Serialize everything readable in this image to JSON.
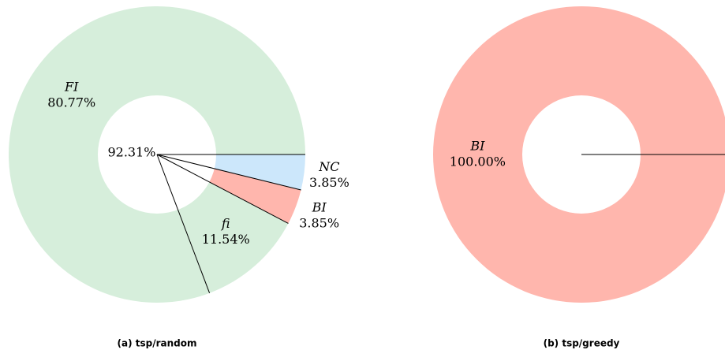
{
  "chart_data": [
    {
      "type": "donut",
      "title": "(a) tsp/random",
      "center_label": "92.31%",
      "categories": [
        "NC",
        "BI",
        "fi",
        "FI"
      ],
      "values": [
        3.85,
        3.85,
        11.54,
        80.77
      ],
      "value_labels": [
        "3.85%",
        "3.85%",
        "11.54%",
        "80.77%"
      ],
      "colors": [
        "#cce7fb",
        "#ffb6ad",
        "#d6eedb",
        "#d6eedb"
      ]
    },
    {
      "type": "donut",
      "title": "(b) tsp/greedy",
      "categories": [
        "BI"
      ],
      "values": [
        100.0
      ],
      "value_labels": [
        "100.00%"
      ],
      "colors": [
        "#ffb6ad"
      ]
    }
  ]
}
